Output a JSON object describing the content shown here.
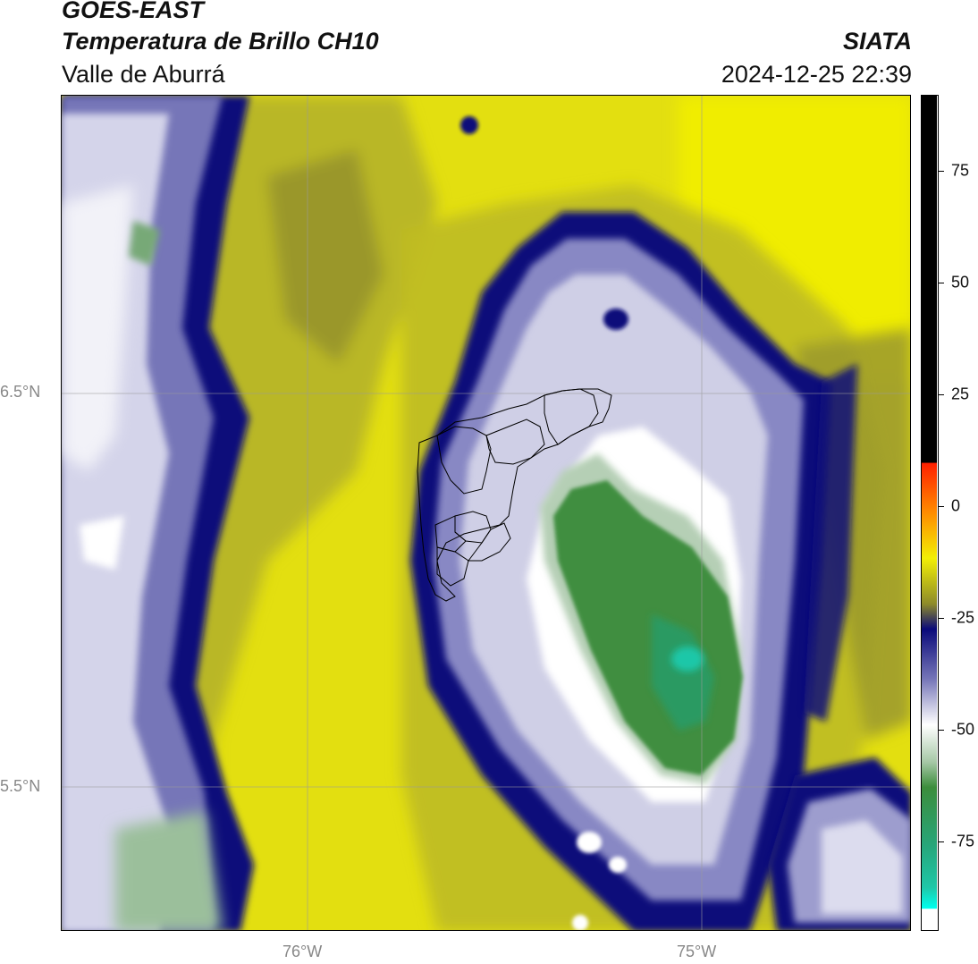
{
  "header": {
    "satellite": "GOES-EAST",
    "product": "Temperatura de Brillo CH10",
    "region": "Valle de Aburrá",
    "agency": "SIATA",
    "datetime": "2024-12-25 22:39"
  },
  "map": {
    "lat_labels": [
      "6.5°N",
      "5.5°N"
    ],
    "lon_labels": [
      "76°W",
      "75°W"
    ],
    "gridlines": true
  },
  "colorbar": {
    "ticks": [
      "75",
      "50",
      "25",
      "0",
      "-25",
      "-50",
      "-75"
    ],
    "range": [
      -95,
      92
    ],
    "colors": {
      "black": "#000000",
      "red": "#ff2000",
      "orange": "#ff8c00",
      "yellow": "#f2ef05",
      "olive": "#8d8a2a",
      "navy": "#0a0a7a",
      "lavender": "#b6b6da",
      "white": "#ffffff",
      "green": "#3c8d3c",
      "teal": "#1fc7a8",
      "cyan": "#00ffee"
    }
  }
}
